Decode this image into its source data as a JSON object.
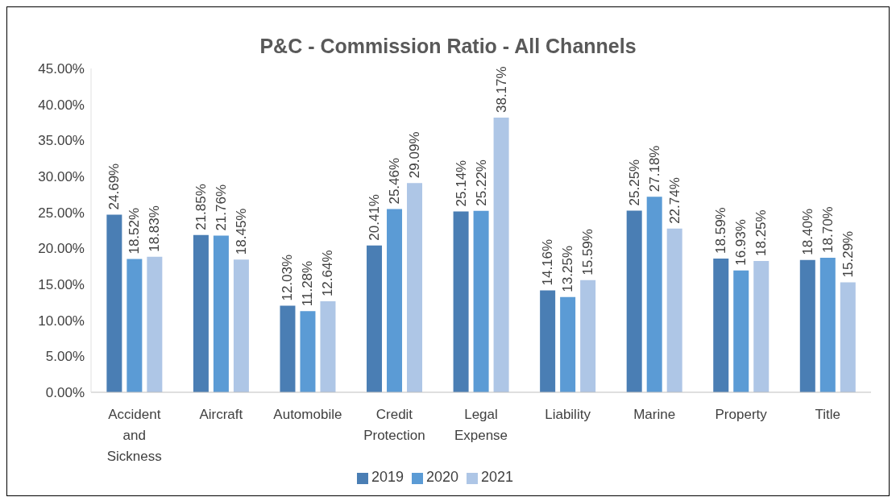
{
  "chart_data": {
    "type": "bar",
    "title": "P&C - Commission Ratio - All Channels",
    "categories": [
      "Accident and Sickness",
      "Aircraft",
      "Automobile",
      "Credit Protection",
      "Legal Expense",
      "Liability",
      "Marine",
      "Property",
      "Title"
    ],
    "series": [
      {
        "name": "2019",
        "color": "#4a7eb4",
        "values": [
          24.69,
          21.85,
          12.03,
          20.41,
          25.14,
          14.16,
          25.25,
          18.59,
          18.4
        ],
        "value_labels": [
          "24.69%",
          "21.85%",
          "12.03%",
          "20.41%",
          "25.14%",
          "14.16%",
          "25.25%",
          "18.59%",
          "18.40%"
        ]
      },
      {
        "name": "2020",
        "color": "#5b9bd5",
        "values": [
          18.52,
          21.76,
          11.28,
          25.46,
          25.22,
          13.25,
          27.18,
          16.93,
          18.7
        ],
        "value_labels": [
          "18.52%",
          "21.76%",
          "11.28%",
          "25.46%",
          "25.22%",
          "13.25%",
          "27.18%",
          "16.93%",
          "18.70%"
        ]
      },
      {
        "name": "2021",
        "color": "#aec6e6",
        "values": [
          18.83,
          18.45,
          12.64,
          29.09,
          38.17,
          15.59,
          22.74,
          18.25,
          15.29
        ],
        "value_labels": [
          "18.83%",
          "18.45%",
          "12.64%",
          "29.09%",
          "38.17%",
          "15.59%",
          "22.74%",
          "18.25%",
          "15.29%"
        ]
      }
    ],
    "ylim": [
      0,
      45
    ],
    "yticks": [
      {
        "value": 0,
        "label": "0.00%"
      },
      {
        "value": 5,
        "label": "5.00%"
      },
      {
        "value": 10,
        "label": "10.00%"
      },
      {
        "value": 15,
        "label": "15.00%"
      },
      {
        "value": 20,
        "label": "20.00%"
      },
      {
        "value": 25,
        "label": "25.00%"
      },
      {
        "value": 30,
        "label": "30.00%"
      },
      {
        "value": 35,
        "label": "35.00%"
      },
      {
        "value": 40,
        "label": "40.00%"
      },
      {
        "value": 45,
        "label": "45.00%"
      }
    ],
    "legend": "bottom"
  }
}
